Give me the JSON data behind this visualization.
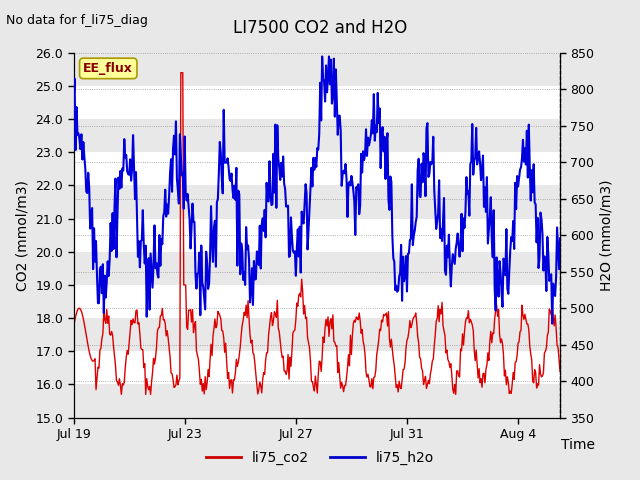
{
  "title": "LI7500 CO2 and H2O",
  "top_left_text": "No data for f_li75_diag",
  "xlabel": "Time",
  "ylabel_left": "CO2 (mmol/m3)",
  "ylabel_right": "H2O (mmol/m3)",
  "ylim_left": [
    15.0,
    26.0
  ],
  "ylim_right": [
    350,
    850
  ],
  "yticks_left": [
    15.0,
    16.0,
    17.0,
    18.0,
    19.0,
    20.0,
    21.0,
    22.0,
    23.0,
    24.0,
    25.0,
    26.0
  ],
  "yticks_right": [
    350,
    400,
    450,
    500,
    550,
    600,
    650,
    700,
    750,
    800,
    850
  ],
  "xtick_labels": [
    "Jul 19",
    "Jul 23",
    "Jul 27",
    "Jul 31",
    "Aug 4"
  ],
  "xtick_positions": [
    0,
    4,
    8,
    12,
    16
  ],
  "legend_labels": [
    "li75_co2",
    "li75_h2o"
  ],
  "legend_colors": [
    "#cc0000",
    "#0000cc"
  ],
  "co2_color": "#dd0000",
  "h2o_color": "#0000dd",
  "plot_bg_light": "#ffffff",
  "plot_bg_dark": "#e8e8e8",
  "fig_bg_color": "#e8e8e8",
  "ee_flux_bg": "#ffff99",
  "ee_flux_border": "#aa9900",
  "ee_flux_text": "#880000",
  "title_fontsize": 12,
  "axis_label_fontsize": 10,
  "tick_fontsize": 9,
  "annotation_fontsize": 9,
  "legend_fontsize": 10
}
